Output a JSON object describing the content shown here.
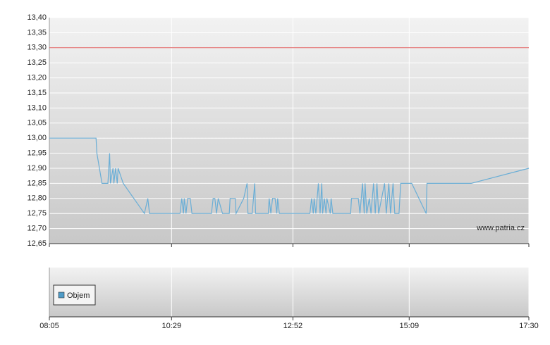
{
  "chart_data": [
    {
      "type": "line",
      "annotation": "www.patria.cz",
      "x": [
        485,
        540,
        541,
        547,
        554,
        556,
        557,
        560,
        561,
        563,
        565,
        566,
        572,
        597,
        601,
        603,
        639,
        641,
        643,
        644,
        646,
        648,
        651,
        653,
        676,
        678,
        680,
        682,
        684,
        689,
        697,
        698,
        704,
        705,
        714,
        718,
        719,
        724,
        727,
        728,
        743,
        744,
        746,
        748,
        751,
        753,
        754,
        756,
        792,
        794,
        796,
        797,
        799,
        802,
        804,
        806,
        807,
        809,
        811,
        812,
        816,
        817,
        819,
        840,
        841,
        849,
        851,
        854,
        856,
        857,
        859,
        862,
        864,
        867,
        869,
        871,
        873,
        880,
        882,
        885,
        887,
        890,
        892,
        897,
        899,
        912,
        929,
        930,
        982,
        1050
      ],
      "series": [
        {
          "color": "#6aaed6",
          "values": [
            13.0,
            13.0,
            12.95,
            12.85,
            12.85,
            12.95,
            12.85,
            12.9,
            12.85,
            12.9,
            12.85,
            12.9,
            12.85,
            12.75,
            12.8,
            12.75,
            12.75,
            12.8,
            12.75,
            12.8,
            12.75,
            12.8,
            12.8,
            12.75,
            12.75,
            12.8,
            12.8,
            12.75,
            12.8,
            12.75,
            12.75,
            12.8,
            12.8,
            12.75,
            12.8,
            12.85,
            12.75,
            12.75,
            12.85,
            12.75,
            12.75,
            12.8,
            12.75,
            12.8,
            12.8,
            12.75,
            12.8,
            12.75,
            12.75,
            12.8,
            12.75,
            12.8,
            12.75,
            12.85,
            12.75,
            12.85,
            12.75,
            12.8,
            12.75,
            12.8,
            12.75,
            12.8,
            12.75,
            12.75,
            12.8,
            12.8,
            12.75,
            12.85,
            12.75,
            12.85,
            12.75,
            12.8,
            12.75,
            12.85,
            12.75,
            12.85,
            12.75,
            12.85,
            12.75,
            12.85,
            12.75,
            12.85,
            12.75,
            12.75,
            12.85,
            12.85,
            12.75,
            12.85,
            12.85,
            12.9
          ]
        }
      ],
      "reference_line": {
        "value": 13.3,
        "color": "#e06060"
      },
      "xlim": [
        485,
        1050
      ],
      "xticks": [
        {
          "value": 485,
          "label": "08:05"
        },
        {
          "value": 629,
          "label": "10:29"
        },
        {
          "value": 772,
          "label": "12:52"
        },
        {
          "value": 909,
          "label": "15:09"
        },
        {
          "value": 1050,
          "label": "17:30"
        }
      ],
      "ylim": [
        12.65,
        13.4
      ],
      "yticks": [
        {
          "value": 12.65,
          "label": "12,65"
        },
        {
          "value": 12.7,
          "label": "12,70"
        },
        {
          "value": 12.75,
          "label": "12,75"
        },
        {
          "value": 12.8,
          "label": "12,80"
        },
        {
          "value": 12.85,
          "label": "12,85"
        },
        {
          "value": 12.9,
          "label": "12,90"
        },
        {
          "value": 12.95,
          "label": "12,95"
        },
        {
          "value": 13.0,
          "label": "13,00"
        },
        {
          "value": 13.05,
          "label": "13,05"
        },
        {
          "value": 13.1,
          "label": "13,10"
        },
        {
          "value": 13.15,
          "label": "13,15"
        },
        {
          "value": 13.2,
          "label": "13,20"
        },
        {
          "value": 13.25,
          "label": "13,25"
        },
        {
          "value": 13.3,
          "label": "13,30"
        },
        {
          "value": 13.35,
          "label": "13,35"
        },
        {
          "value": 13.4,
          "label": "13,40"
        }
      ],
      "grid": true
    },
    {
      "type": "bar",
      "series": [
        {
          "name": "Objem",
          "color": "#4f9cc8",
          "values": []
        }
      ]
    }
  ]
}
